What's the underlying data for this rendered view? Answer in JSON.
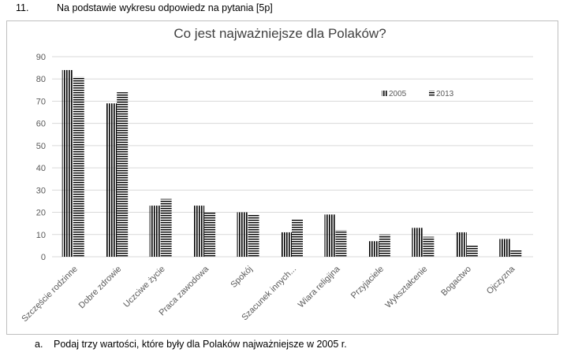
{
  "task": {
    "number": "11.",
    "text": "Na podstawie wykresu odpowiedz na pytania [5p]"
  },
  "subquestion": {
    "letter": "a.",
    "text": "Podaj trzy wartości, które były dla Polaków najważniejsze w 2005 r."
  },
  "chart_data": {
    "type": "bar",
    "title": "Co jest najważniejsze dla Polaków?",
    "categories": [
      "Szczęście rodzinne",
      "Dobre zdrowie",
      "Uczciwe życie",
      "Praca zawodowa",
      "Spokój",
      "Szacunek innych...",
      "Wiara religijna",
      "Przyjaciele",
      "Wykształcenie",
      "Bogactwo",
      "Ojczyzna"
    ],
    "series": [
      {
        "name": "2005",
        "values": [
          84,
          69,
          23,
          23,
          20,
          11,
          19,
          7,
          13,
          11,
          8
        ],
        "pattern": "vertical-stripes"
      },
      {
        "name": "2013",
        "values": [
          81,
          74,
          26,
          20,
          19,
          17,
          12,
          10,
          9,
          5,
          3
        ],
        "pattern": "horizontal-stripes"
      }
    ],
    "ylim": [
      0,
      90
    ],
    "yticks": [
      "0",
      "10",
      "20",
      "30",
      "40",
      "50",
      "60",
      "70",
      "80",
      "90"
    ],
    "grid": true,
    "legend_position": "top-right",
    "colors": {
      "bars": "#000000",
      "grid": "#d9d9d9",
      "axis_text": "#595959",
      "title": "#404040"
    }
  }
}
